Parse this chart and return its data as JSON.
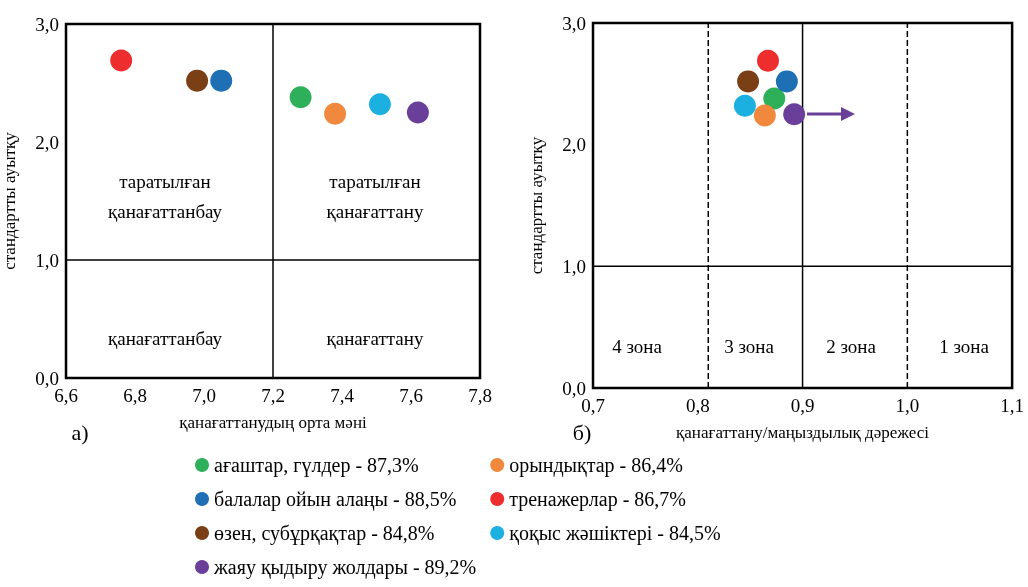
{
  "chart_data": [
    {
      "type": "scatter",
      "xlabel": "қанағаттанудың орта мәні",
      "ylabel": "стандартты ауытқу",
      "marker": "circle",
      "legend": "bottom",
      "grid": false,
      "xlim": [
        6.6,
        7.8
      ],
      "xticks": [
        {
          "value": 6.6,
          "label": "6,6"
        },
        {
          "value": 6.8,
          "label": "6,8"
        },
        {
          "value": 7.0,
          "label": "7,0"
        },
        {
          "value": 7.2,
          "label": "7,2"
        },
        {
          "value": 7.4,
          "label": "7,4"
        },
        {
          "value": 7.6,
          "label": "7,6"
        },
        {
          "value": 7.8,
          "label": "7,8"
        }
      ],
      "ylim": [
        0,
        3
      ],
      "yticks": [
        {
          "value": 0,
          "label": "0,0"
        },
        {
          "value": 1,
          "label": "1,0"
        },
        {
          "value": 2,
          "label": "2,0"
        },
        {
          "value": 3,
          "label": "3,0"
        }
      ],
      "ref_lines": [
        {
          "axis": "x",
          "value": 7.2,
          "color": "#000000",
          "line_style": "solid"
        },
        {
          "axis": "y",
          "value": 1.0,
          "color": "#000000",
          "line_style": "solid"
        }
      ],
      "annotations": [
        "таратылған\nқанағаттанбау",
        "таратылған\nқанағаттану",
        "қанағаттанбау",
        "қанағаттану",
        "а)"
      ],
      "series": [
        {
          "name": "ағаштар, гүлдер - 87,3%",
          "color": "#2eb05a",
          "x": [
            7.28
          ],
          "values": [
            2.38
          ]
        },
        {
          "name": "балалар ойын алаңы - 88,5%",
          "color": "#1f6fb5",
          "x": [
            7.05
          ],
          "values": [
            2.52
          ]
        },
        {
          "name": "өзен, субұрқақтар - 84,8%",
          "color": "#7b3f15",
          "x": [
            6.98
          ],
          "values": [
            2.52
          ]
        },
        {
          "name": "жаяу қыдыру жолдары - 89,2%",
          "color": "#6a3f9a",
          "x": [
            7.62
          ],
          "values": [
            2.25
          ]
        },
        {
          "name": "орындықтар - 86,4%",
          "color": "#f0883e",
          "x": [
            7.38
          ],
          "values": [
            2.24
          ]
        },
        {
          "name": "тренажерлар - 86,7%",
          "color": "#ee2e2e",
          "x": [
            6.76
          ],
          "values": [
            2.69
          ]
        },
        {
          "name": "қоқыс жәшіктері - 84,5%",
          "color": "#1cb0e0",
          "x": [
            7.51
          ],
          "values": [
            2.32
          ]
        }
      ]
    },
    {
      "type": "scatter",
      "xlabel": "қанағаттану/маңыздылық дәрежесі",
      "ylabel": "стандартты ауытқу",
      "marker": "circle",
      "grid": false,
      "xlim": [
        0.7,
        1.1
      ],
      "xticks": [
        {
          "value": 0.7,
          "label": "0,7"
        },
        {
          "value": 0.8,
          "label": "0,8"
        },
        {
          "value": 0.9,
          "label": "0,9"
        },
        {
          "value": 1.0,
          "label": "1,0"
        },
        {
          "value": 1.1,
          "label": "1,1"
        }
      ],
      "ylim": [
        0,
        3
      ],
      "yticks": [
        {
          "value": 0,
          "label": "0,0"
        },
        {
          "value": 1,
          "label": "1,0"
        },
        {
          "value": 2,
          "label": "2,0"
        },
        {
          "value": 3,
          "label": "3,0"
        }
      ],
      "ref_lines": [
        {
          "axis": "x",
          "value": 0.81,
          "color": "#000000",
          "line_style": "dashed"
        },
        {
          "axis": "x",
          "value": 1.0,
          "color": "#000000",
          "line_style": "dashed"
        },
        {
          "axis": "x",
          "value": 0.9,
          "color": "#000000",
          "line_style": "solid"
        },
        {
          "axis": "y",
          "value": 1.0,
          "color": "#000000",
          "line_style": "solid"
        }
      ],
      "annotations": [
        "4 зона",
        "3 зона",
        "2 зона",
        "1 зона",
        "б)"
      ],
      "series": [
        {
          "color": "#2eb05a",
          "x": [
            0.873
          ],
          "values": [
            2.38
          ]
        },
        {
          "color": "#1f6fb5",
          "x": [
            0.885
          ],
          "values": [
            2.52
          ]
        },
        {
          "color": "#7b3f15",
          "x": [
            0.848
          ],
          "values": [
            2.52
          ]
        },
        {
          "color": "#6a3f9a",
          "x": [
            0.892
          ],
          "values": [
            2.25
          ]
        },
        {
          "color": "#f0883e",
          "x": [
            0.864
          ],
          "values": [
            2.24
          ]
        },
        {
          "color": "#ee2e2e",
          "x": [
            0.867
          ],
          "values": [
            2.69
          ]
        },
        {
          "color": "#1cb0e0",
          "x": [
            0.845
          ],
          "values": [
            2.32
          ]
        }
      ]
    }
  ]
}
